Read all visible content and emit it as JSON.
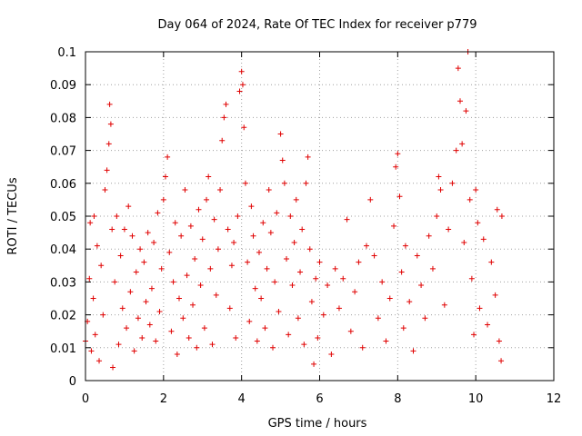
{
  "chart_data": {
    "type": "scatter",
    "title": "Day 064 of 2024, Rate Of TEC Index for receiver p779",
    "xlabel": "GPS time / hours",
    "ylabel": "ROTI / TECUs",
    "xlim": [
      0,
      12
    ],
    "ylim": [
      0,
      0.1
    ],
    "xticks": [
      0,
      2,
      4,
      6,
      8,
      10,
      12
    ],
    "xtick_labels": [
      "0",
      "2",
      "4",
      "6",
      "8",
      "10",
      "12"
    ],
    "yticks": [
      0,
      0.01,
      0.02,
      0.03,
      0.04,
      0.05,
      0.06,
      0.07,
      0.08,
      0.09,
      0.1
    ],
    "ytick_labels": [
      "0",
      "0.01",
      "0.02",
      "0.03",
      "0.04",
      "0.05",
      "0.06",
      "0.07",
      "0.08",
      "0.09",
      "0.1"
    ],
    "grid": true,
    "marker": "+",
    "color": "#e00000",
    "series": [
      {
        "name": "ROTI",
        "points": [
          [
            0.0,
            0.012
          ],
          [
            0.05,
            0.018
          ],
          [
            0.1,
            0.031
          ],
          [
            0.12,
            0.048
          ],
          [
            0.15,
            0.009
          ],
          [
            0.2,
            0.025
          ],
          [
            0.22,
            0.05
          ],
          [
            0.25,
            0.014
          ],
          [
            0.3,
            0.041
          ],
          [
            0.35,
            0.006
          ],
          [
            0.4,
            0.035
          ],
          [
            0.45,
            0.02
          ],
          [
            0.5,
            0.058
          ],
          [
            0.55,
            0.064
          ],
          [
            0.6,
            0.072
          ],
          [
            0.62,
            0.084
          ],
          [
            0.65,
            0.078
          ],
          [
            0.68,
            0.046
          ],
          [
            0.7,
            0.004
          ],
          [
            0.75,
            0.03
          ],
          [
            0.8,
            0.05
          ],
          [
            0.85,
            0.011
          ],
          [
            0.9,
            0.038
          ],
          [
            0.95,
            0.022
          ],
          [
            1.0,
            0.046
          ],
          [
            1.05,
            0.016
          ],
          [
            1.1,
            0.053
          ],
          [
            1.15,
            0.027
          ],
          [
            1.2,
            0.044
          ],
          [
            1.25,
            0.009
          ],
          [
            1.3,
            0.033
          ],
          [
            1.35,
            0.019
          ],
          [
            1.4,
            0.04
          ],
          [
            1.45,
            0.013
          ],
          [
            1.5,
            0.036
          ],
          [
            1.55,
            0.024
          ],
          [
            1.6,
            0.045
          ],
          [
            1.65,
            0.017
          ],
          [
            1.7,
            0.028
          ],
          [
            1.75,
            0.042
          ],
          [
            1.8,
            0.012
          ],
          [
            1.85,
            0.051
          ],
          [
            1.9,
            0.021
          ],
          [
            1.95,
            0.034
          ],
          [
            2.0,
            0.055
          ],
          [
            2.05,
            0.062
          ],
          [
            2.1,
            0.068
          ],
          [
            2.15,
            0.039
          ],
          [
            2.2,
            0.015
          ],
          [
            2.25,
            0.03
          ],
          [
            2.3,
            0.048
          ],
          [
            2.35,
            0.008
          ],
          [
            2.4,
            0.025
          ],
          [
            2.45,
            0.044
          ],
          [
            2.5,
            0.019
          ],
          [
            2.55,
            0.058
          ],
          [
            2.6,
            0.032
          ],
          [
            2.65,
            0.013
          ],
          [
            2.7,
            0.047
          ],
          [
            2.75,
            0.023
          ],
          [
            2.8,
            0.037
          ],
          [
            2.85,
            0.01
          ],
          [
            2.9,
            0.052
          ],
          [
            2.95,
            0.029
          ],
          [
            3.0,
            0.043
          ],
          [
            3.05,
            0.016
          ],
          [
            3.1,
            0.055
          ],
          [
            3.15,
            0.062
          ],
          [
            3.2,
            0.034
          ],
          [
            3.25,
            0.011
          ],
          [
            3.3,
            0.049
          ],
          [
            3.35,
            0.026
          ],
          [
            3.4,
            0.04
          ],
          [
            3.45,
            0.058
          ],
          [
            3.5,
            0.073
          ],
          [
            3.55,
            0.08
          ],
          [
            3.6,
            0.084
          ],
          [
            3.65,
            0.046
          ],
          [
            3.7,
            0.022
          ],
          [
            3.75,
            0.035
          ],
          [
            3.8,
            0.042
          ],
          [
            3.85,
            0.013
          ],
          [
            3.9,
            0.05
          ],
          [
            3.95,
            0.088
          ],
          [
            4.0,
            0.094
          ],
          [
            4.03,
            0.09
          ],
          [
            4.06,
            0.077
          ],
          [
            4.1,
            0.06
          ],
          [
            4.15,
            0.036
          ],
          [
            4.2,
            0.018
          ],
          [
            4.25,
            0.053
          ],
          [
            4.3,
            0.044
          ],
          [
            4.35,
            0.028
          ],
          [
            4.4,
            0.012
          ],
          [
            4.45,
            0.039
          ],
          [
            4.5,
            0.025
          ],
          [
            4.55,
            0.048
          ],
          [
            4.6,
            0.016
          ],
          [
            4.65,
            0.034
          ],
          [
            4.7,
            0.058
          ],
          [
            4.75,
            0.045
          ],
          [
            4.8,
            0.01
          ],
          [
            4.85,
            0.03
          ],
          [
            4.9,
            0.051
          ],
          [
            4.95,
            0.021
          ],
          [
            5.0,
            0.075
          ],
          [
            5.05,
            0.067
          ],
          [
            5.1,
            0.06
          ],
          [
            5.15,
            0.037
          ],
          [
            5.2,
            0.014
          ],
          [
            5.25,
            0.05
          ],
          [
            5.3,
            0.029
          ],
          [
            5.35,
            0.042
          ],
          [
            5.4,
            0.055
          ],
          [
            5.45,
            0.019
          ],
          [
            5.5,
            0.033
          ],
          [
            5.55,
            0.046
          ],
          [
            5.6,
            0.011
          ],
          [
            5.65,
            0.06
          ],
          [
            5.7,
            0.068
          ],
          [
            5.75,
            0.04
          ],
          [
            5.8,
            0.024
          ],
          [
            5.85,
            0.005
          ],
          [
            5.9,
            0.031
          ],
          [
            5.95,
            0.013
          ],
          [
            6.0,
            0.036
          ],
          [
            6.1,
            0.02
          ],
          [
            6.2,
            0.029
          ],
          [
            6.3,
            0.008
          ],
          [
            6.4,
            0.034
          ],
          [
            6.5,
            0.022
          ],
          [
            6.6,
            0.031
          ],
          [
            6.7,
            0.049
          ],
          [
            6.8,
            0.015
          ],
          [
            6.9,
            0.027
          ],
          [
            7.0,
            0.036
          ],
          [
            7.1,
            0.01
          ],
          [
            7.2,
            0.041
          ],
          [
            7.3,
            0.055
          ],
          [
            7.4,
            0.038
          ],
          [
            7.5,
            0.019
          ],
          [
            7.6,
            0.03
          ],
          [
            7.7,
            0.012
          ],
          [
            7.8,
            0.025
          ],
          [
            7.9,
            0.047
          ],
          [
            7.95,
            0.065
          ],
          [
            8.0,
            0.069
          ],
          [
            8.05,
            0.056
          ],
          [
            8.1,
            0.033
          ],
          [
            8.15,
            0.016
          ],
          [
            8.2,
            0.041
          ],
          [
            8.3,
            0.024
          ],
          [
            8.4,
            0.009
          ],
          [
            8.5,
            0.038
          ],
          [
            8.6,
            0.029
          ],
          [
            8.7,
            0.019
          ],
          [
            8.8,
            0.044
          ],
          [
            8.9,
            0.034
          ],
          [
            9.0,
            0.05
          ],
          [
            9.05,
            0.062
          ],
          [
            9.1,
            0.058
          ],
          [
            9.2,
            0.023
          ],
          [
            9.3,
            0.046
          ],
          [
            9.4,
            0.06
          ],
          [
            9.5,
            0.07
          ],
          [
            9.55,
            0.095
          ],
          [
            9.6,
            0.085
          ],
          [
            9.65,
            0.072
          ],
          [
            9.7,
            0.042
          ],
          [
            9.75,
            0.082
          ],
          [
            9.8,
            0.1
          ],
          [
            9.85,
            0.055
          ],
          [
            9.9,
            0.031
          ],
          [
            9.95,
            0.014
          ],
          [
            10.0,
            0.058
          ],
          [
            10.05,
            0.048
          ],
          [
            10.1,
            0.022
          ],
          [
            10.2,
            0.043
          ],
          [
            10.3,
            0.017
          ],
          [
            10.4,
            0.036
          ],
          [
            10.5,
            0.026
          ],
          [
            10.55,
            0.052
          ],
          [
            10.6,
            0.012
          ],
          [
            10.65,
            0.006
          ],
          [
            10.67,
            0.05
          ]
        ]
      }
    ]
  }
}
